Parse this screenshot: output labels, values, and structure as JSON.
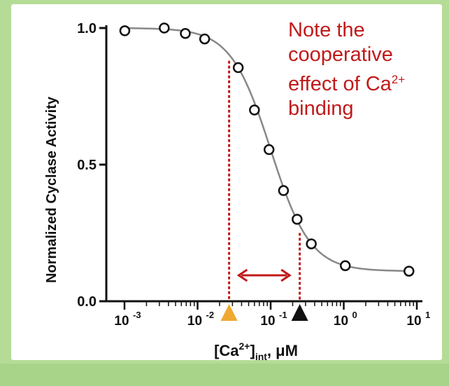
{
  "chart_data": {
    "type": "scatter",
    "title": "",
    "ylabel": "Normalized Cyclase Activity",
    "xlabel": {
      "main": "[Ca",
      "sup": "2+",
      "close": "]",
      "sub": "int",
      "unit": ", μM"
    },
    "xscale": "log",
    "xlim": [
      0.001,
      10
    ],
    "ylim": [
      0.0,
      1.0
    ],
    "x_ticks": [
      {
        "base": "10",
        "exp": "-3"
      },
      {
        "base": "10",
        "exp": "-2"
      },
      {
        "base": "10",
        "exp": "-1"
      },
      {
        "base": "10",
        "exp": "0"
      },
      {
        "base": "10",
        "exp": "1"
      }
    ],
    "y_ticks": [
      "0.0",
      "0.5",
      "1.0"
    ],
    "series": [
      {
        "points": [
          {
            "x": 0.00101,
            "y": 0.99
          },
          {
            "x": 0.0035,
            "y": 1.0
          },
          {
            "x": 0.0068,
            "y": 0.98
          },
          {
            "x": 0.0125,
            "y": 0.96
          },
          {
            "x": 0.036,
            "y": 0.855
          },
          {
            "x": 0.06,
            "y": 0.7
          },
          {
            "x": 0.095,
            "y": 0.555
          },
          {
            "x": 0.15,
            "y": 0.405
          },
          {
            "x": 0.23,
            "y": 0.3
          },
          {
            "x": 0.36,
            "y": 0.21
          },
          {
            "x": 1.05,
            "y": 0.13
          },
          {
            "x": 7.8,
            "y": 0.11
          }
        ]
      }
    ],
    "fit_curve": {
      "top": 1.0,
      "bottom": 0.11,
      "ec50": 0.1,
      "hill": 1.6
    },
    "markers": [
      {
        "x": 0.027,
        "color": "#f0a830",
        "shape": "triangle",
        "line_to_y": 0.88
      },
      {
        "x": 0.25,
        "color": "#111111",
        "shape": "triangle",
        "line_to_y": 0.25
      }
    ],
    "range_arrow": {
      "x_from": 0.035,
      "x_to": 0.19,
      "y": 0.095,
      "color": "#c11a1a"
    },
    "annotation_lines": [
      "Note the",
      "cooperative",
      "effect of Ca",
      "binding"
    ],
    "annotation_sup": "2+",
    "colors": {
      "accent": "#c11a1a",
      "curve": "#888888",
      "points": "#111111",
      "background": "#b4dc96"
    }
  }
}
